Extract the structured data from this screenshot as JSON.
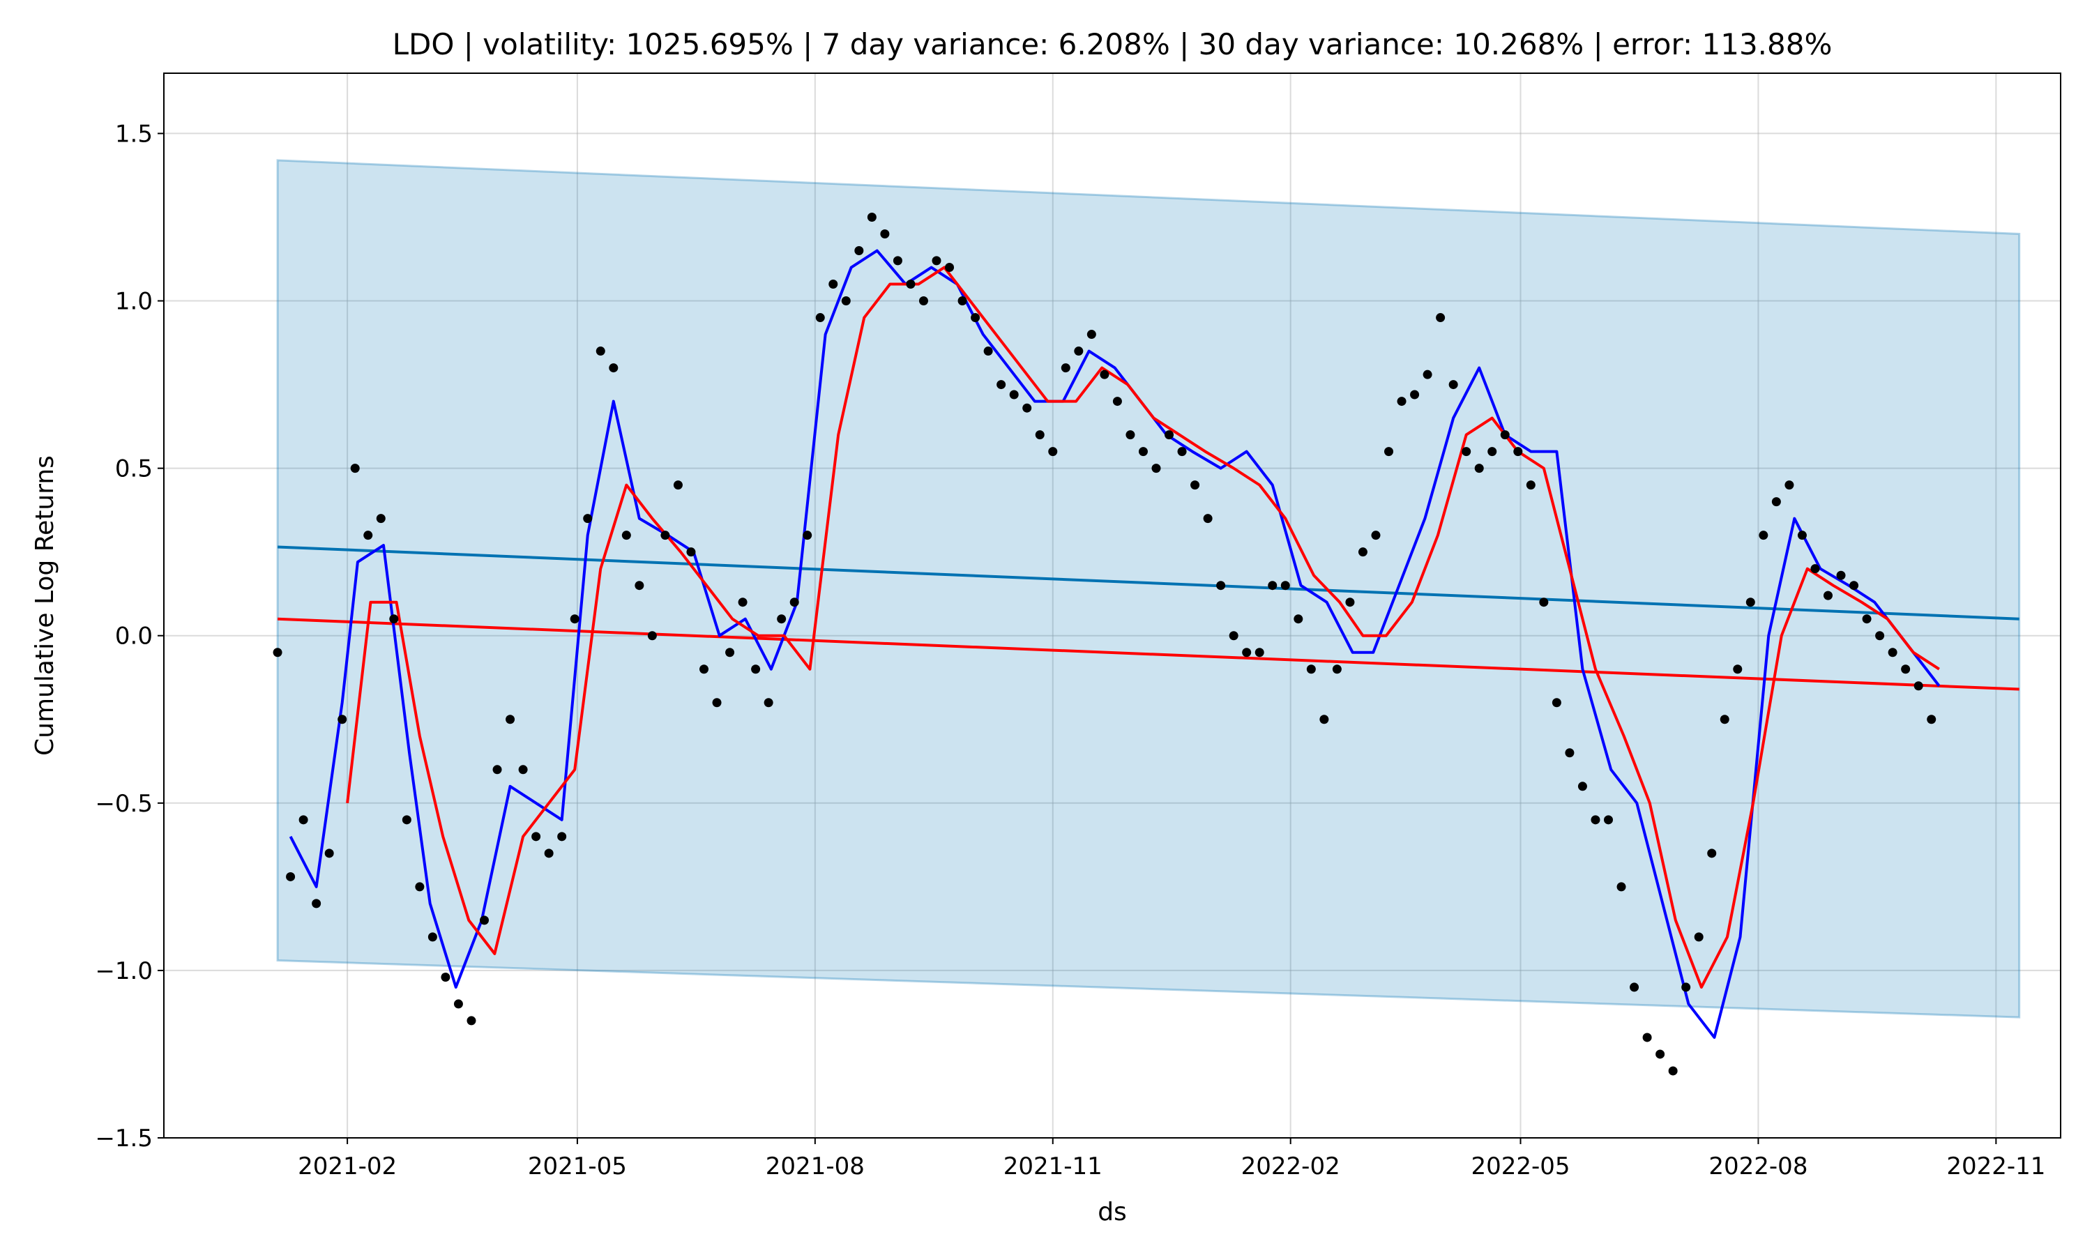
{
  "chart_data": {
    "type": "line",
    "title": "LDO | volatility: 1025.695% | 7 day variance: 6.208% | 30 day variance: 10.268% | error: 113.88%",
    "xlabel": "ds",
    "ylabel": "Cumulative Log Returns",
    "x_axis": "date",
    "xlim": [
      "2020-11-22",
      "2022-11-26"
    ],
    "ylim": [
      -1.5,
      1.68
    ],
    "grid": true,
    "x_ticks": [
      "2021-02-01",
      "2021-05-01",
      "2021-08-01",
      "2021-11-01",
      "2022-02-01",
      "2022-05-01",
      "2022-08-01",
      "2022-11-01"
    ],
    "x_tick_labels": [
      "2021-02",
      "2021-05",
      "2021-08",
      "2021-11",
      "2022-02",
      "2022-05",
      "2022-08",
      "2022-11"
    ],
    "y_ticks": [
      -1.5,
      -1.0,
      -0.5,
      0.0,
      0.5,
      1.0,
      1.5
    ],
    "y_tick_labels": [
      "−1.5",
      "−1.0",
      "−0.5",
      "0.0",
      "0.5",
      "1.0",
      "1.5"
    ],
    "series": [
      {
        "kind": "band",
        "color": "#0072B2",
        "fill_opacity": 0.2,
        "x": [
          "2021-01-05",
          "2022-11-10"
        ],
        "upper": [
          1.42,
          1.2
        ],
        "lower": [
          -0.97,
          -1.14
        ]
      },
      {
        "kind": "line",
        "color": "#0072B2",
        "x": [
          "2021-01-05",
          "2022-11-10"
        ],
        "values": [
          0.265,
          0.05
        ]
      },
      {
        "kind": "line",
        "color": "#ff0000",
        "x": [
          "2021-01-05",
          "2022-11-10"
        ],
        "values": [
          0.05,
          -0.16
        ]
      },
      {
        "kind": "scatter",
        "color": "#000000",
        "x": [
          "2021-01-05",
          "2021-01-10",
          "2021-01-15",
          "2021-01-20",
          "2021-01-25",
          "2021-01-30",
          "2021-02-04",
          "2021-02-09",
          "2021-02-14",
          "2021-02-19",
          "2021-02-24",
          "2021-03-01",
          "2021-03-06",
          "2021-03-11",
          "2021-03-16",
          "2021-03-21",
          "2021-03-26",
          "2021-03-31",
          "2021-04-05",
          "2021-04-10",
          "2021-04-15",
          "2021-04-20",
          "2021-04-25",
          "2021-04-30",
          "2021-05-05",
          "2021-05-10",
          "2021-05-15",
          "2021-05-20",
          "2021-05-25",
          "2021-05-30",
          "2021-06-04",
          "2021-06-09",
          "2021-06-14",
          "2021-06-19",
          "2021-06-24",
          "2021-06-29",
          "2021-07-04",
          "2021-07-09",
          "2021-07-14",
          "2021-07-19",
          "2021-07-24",
          "2021-07-29",
          "2021-08-03",
          "2021-08-08",
          "2021-08-13",
          "2021-08-18",
          "2021-08-23",
          "2021-08-28",
          "2021-09-02",
          "2021-09-07",
          "2021-09-12",
          "2021-09-17",
          "2021-09-22",
          "2021-09-27",
          "2021-10-02",
          "2021-10-07",
          "2021-10-12",
          "2021-10-17",
          "2021-10-22",
          "2021-10-27",
          "2021-11-01",
          "2021-11-06",
          "2021-11-11",
          "2021-11-16",
          "2021-11-21",
          "2021-11-26",
          "2021-12-01",
          "2021-12-06",
          "2021-12-11",
          "2021-12-16",
          "2021-12-21",
          "2021-12-26",
          "2021-12-31",
          "2022-01-05",
          "2022-01-10",
          "2022-01-15",
          "2022-01-20",
          "2022-01-25",
          "2022-01-30",
          "2022-02-04",
          "2022-02-09",
          "2022-02-14",
          "2022-02-19",
          "2022-02-24",
          "2022-03-01",
          "2022-03-06",
          "2022-03-11",
          "2022-03-16",
          "2022-03-21",
          "2022-03-26",
          "2022-03-31",
          "2022-04-05",
          "2022-04-10",
          "2022-04-15",
          "2022-04-20",
          "2022-04-25",
          "2022-04-30",
          "2022-05-05",
          "2022-05-10",
          "2022-05-15",
          "2022-05-20",
          "2022-05-25",
          "2022-05-30",
          "2022-06-04",
          "2022-06-09",
          "2022-06-14",
          "2022-06-19",
          "2022-06-24",
          "2022-06-29",
          "2022-07-04",
          "2022-07-09",
          "2022-07-14",
          "2022-07-19",
          "2022-07-24",
          "2022-07-29",
          "2022-08-03",
          "2022-08-08",
          "2022-08-13",
          "2022-08-18",
          "2022-08-23",
          "2022-08-28",
          "2022-09-02",
          "2022-09-07",
          "2022-09-12",
          "2022-09-17",
          "2022-09-22",
          "2022-09-27",
          "2022-10-02",
          "2022-10-07"
        ],
        "values": [
          -0.05,
          -0.72,
          -0.55,
          -0.8,
          -0.65,
          -0.25,
          0.5,
          0.3,
          0.35,
          0.05,
          -0.55,
          -0.75,
          -0.9,
          -1.02,
          -1.1,
          -1.15,
          -0.85,
          -0.4,
          -0.25,
          -0.4,
          -0.6,
          -0.65,
          -0.6,
          0.05,
          0.35,
          0.85,
          0.8,
          0.3,
          0.15,
          0.0,
          0.3,
          0.45,
          0.25,
          -0.1,
          -0.2,
          -0.05,
          0.1,
          -0.1,
          -0.2,
          0.05,
          0.1,
          0.3,
          0.95,
          1.05,
          1.0,
          1.15,
          1.25,
          1.2,
          1.12,
          1.05,
          1.0,
          1.12,
          1.1,
          1.0,
          0.95,
          0.85,
          0.75,
          0.72,
          0.68,
          0.6,
          0.55,
          0.8,
          0.85,
          0.9,
          0.78,
          0.7,
          0.6,
          0.55,
          0.5,
          0.6,
          0.55,
          0.45,
          0.35,
          0.15,
          0.0,
          -0.05,
          -0.05,
          0.15,
          0.15,
          0.05,
          -0.1,
          -0.25,
          -0.1,
          0.1,
          0.25,
          0.3,
          0.55,
          0.7,
          0.72,
          0.78,
          0.95,
          0.75,
          0.55,
          0.5,
          0.55,
          0.6,
          0.55,
          0.45,
          0.1,
          -0.2,
          -0.35,
          -0.45,
          -0.55,
          -0.55,
          -0.75,
          -1.05,
          -1.2,
          -1.25,
          -1.3,
          -1.05,
          -0.9,
          -0.65,
          -0.25,
          -0.1,
          0.1,
          0.3,
          0.4,
          0.45,
          0.3,
          0.2,
          0.12,
          0.18,
          0.15,
          0.05,
          0.0,
          -0.05,
          -0.1,
          -0.15,
          -0.25
        ]
      },
      {
        "kind": "line",
        "color": "#0000ff",
        "x": [
          "2021-01-10",
          "2021-01-20",
          "2021-01-30",
          "2021-02-05",
          "2021-02-15",
          "2021-02-25",
          "2021-03-05",
          "2021-03-15",
          "2021-03-25",
          "2021-04-05",
          "2021-04-15",
          "2021-04-25",
          "2021-05-05",
          "2021-05-15",
          "2021-05-25",
          "2021-06-05",
          "2021-06-15",
          "2021-06-25",
          "2021-07-05",
          "2021-07-15",
          "2021-07-25",
          "2021-08-05",
          "2021-08-15",
          "2021-08-25",
          "2021-09-05",
          "2021-09-15",
          "2021-09-25",
          "2021-10-05",
          "2021-10-15",
          "2021-10-25",
          "2021-11-05",
          "2021-11-15",
          "2021-11-25",
          "2021-12-05",
          "2021-12-15",
          "2021-12-25",
          "2022-01-05",
          "2022-01-15",
          "2022-01-25",
          "2022-02-05",
          "2022-02-15",
          "2022-02-25",
          "2022-03-05",
          "2022-03-15",
          "2022-03-25",
          "2022-04-05",
          "2022-04-15",
          "2022-04-25",
          "2022-05-05",
          "2022-05-15",
          "2022-05-25",
          "2022-06-05",
          "2022-06-15",
          "2022-06-25",
          "2022-07-05",
          "2022-07-15",
          "2022-07-25",
          "2022-08-05",
          "2022-08-15",
          "2022-08-25",
          "2022-09-05",
          "2022-09-15",
          "2022-09-25",
          "2022-10-05",
          "2022-10-10"
        ],
        "values": [
          -0.6,
          -0.75,
          -0.2,
          0.22,
          0.27,
          -0.35,
          -0.8,
          -1.05,
          -0.85,
          -0.45,
          -0.5,
          -0.55,
          0.3,
          0.7,
          0.35,
          0.3,
          0.25,
          0.0,
          0.05,
          -0.1,
          0.1,
          0.9,
          1.1,
          1.15,
          1.05,
          1.1,
          1.05,
          0.9,
          0.8,
          0.7,
          0.7,
          0.85,
          0.8,
          0.7,
          0.6,
          0.55,
          0.5,
          0.55,
          0.45,
          0.15,
          0.1,
          -0.05,
          -0.05,
          0.15,
          0.35,
          0.65,
          0.8,
          0.6,
          0.55,
          0.55,
          -0.1,
          -0.4,
          -0.5,
          -0.8,
          -1.1,
          -1.2,
          -0.9,
          0.0,
          0.35,
          0.2,
          0.15,
          0.1,
          0.0,
          -0.1,
          -0.15
        ]
      },
      {
        "kind": "line",
        "color": "#ff0000",
        "x": [
          "2021-02-01",
          "2021-02-10",
          "2021-02-20",
          "2021-03-01",
          "2021-03-10",
          "2021-03-20",
          "2021-03-30",
          "2021-04-10",
          "2021-04-20",
          "2021-04-30",
          "2021-05-10",
          "2021-05-20",
          "2021-05-30",
          "2021-06-10",
          "2021-06-20",
          "2021-06-30",
          "2021-07-10",
          "2021-07-20",
          "2021-07-30",
          "2021-08-10",
          "2021-08-20",
          "2021-08-30",
          "2021-09-10",
          "2021-09-20",
          "2021-09-30",
          "2021-10-10",
          "2021-10-20",
          "2021-10-30",
          "2021-11-10",
          "2021-11-20",
          "2021-11-30",
          "2021-12-10",
          "2021-12-20",
          "2021-12-30",
          "2022-01-10",
          "2022-01-20",
          "2022-01-30",
          "2022-02-10",
          "2022-02-20",
          "2022-03-01",
          "2022-03-10",
          "2022-03-20",
          "2022-03-30",
          "2022-04-10",
          "2022-04-20",
          "2022-04-30",
          "2022-05-10",
          "2022-05-20",
          "2022-05-30",
          "2022-06-10",
          "2022-06-20",
          "2022-06-30",
          "2022-07-10",
          "2022-07-20",
          "2022-07-30",
          "2022-08-10",
          "2022-08-20",
          "2022-08-30",
          "2022-09-10",
          "2022-09-20",
          "2022-09-30",
          "2022-10-10"
        ],
        "values": [
          -0.5,
          0.1,
          0.1,
          -0.3,
          -0.6,
          -0.85,
          -0.95,
          -0.6,
          -0.5,
          -0.4,
          0.2,
          0.45,
          0.35,
          0.25,
          0.15,
          0.05,
          0.0,
          0.0,
          -0.1,
          0.6,
          0.95,
          1.05,
          1.05,
          1.1,
          1.0,
          0.9,
          0.8,
          0.7,
          0.7,
          0.8,
          0.75,
          0.65,
          0.6,
          0.55,
          0.5,
          0.45,
          0.35,
          0.18,
          0.1,
          0.0,
          0.0,
          0.1,
          0.3,
          0.6,
          0.65,
          0.55,
          0.5,
          0.2,
          -0.1,
          -0.3,
          -0.5,
          -0.85,
          -1.05,
          -0.9,
          -0.5,
          0.0,
          0.2,
          0.15,
          0.1,
          0.05,
          -0.05,
          -0.1
        ]
      }
    ]
  }
}
